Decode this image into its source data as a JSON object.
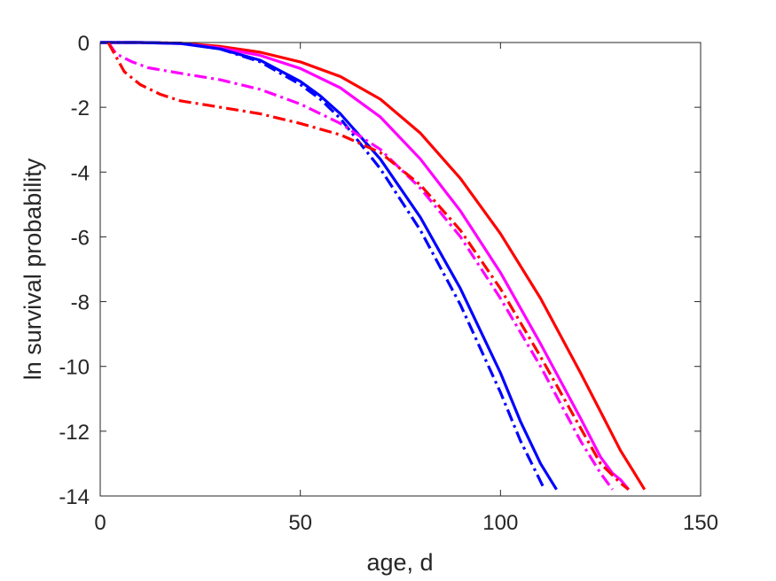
{
  "chart_data": {
    "type": "line",
    "title": "",
    "xlabel": "age, d",
    "ylabel": "ln survival probability",
    "xlim": [
      0,
      150
    ],
    "ylim": [
      -14,
      0
    ],
    "xticks": [
      0,
      50,
      100,
      150
    ],
    "yticks": [
      0,
      -2,
      -4,
      -6,
      -8,
      -10,
      -12,
      -14
    ],
    "grid": false,
    "legend": "none",
    "series": [
      {
        "color": "#ff0000",
        "style": "solid",
        "x": [
          0,
          10,
          20,
          30,
          40,
          50,
          60,
          70,
          80,
          90,
          100,
          110,
          120,
          125,
          130,
          133,
          136
        ],
        "y": [
          0,
          0,
          -0.02,
          -0.12,
          -0.3,
          -0.6,
          -1.05,
          -1.75,
          -2.8,
          -4.2,
          -5.9,
          -7.9,
          -10.2,
          -11.4,
          -12.6,
          -13.2,
          -13.8
        ]
      },
      {
        "color": "#ff00ff",
        "style": "solid",
        "x": [
          0,
          10,
          20,
          30,
          40,
          50,
          60,
          70,
          80,
          90,
          100,
          110,
          120,
          125,
          128,
          130,
          132
        ],
        "y": [
          0,
          0,
          -0.03,
          -0.17,
          -0.4,
          -0.8,
          -1.4,
          -2.3,
          -3.6,
          -5.2,
          -7.1,
          -9.3,
          -11.6,
          -12.8,
          -13.3,
          -13.5,
          -13.8
        ]
      },
      {
        "color": "#0000ff",
        "style": "solid",
        "x": [
          0,
          10,
          20,
          30,
          40,
          50,
          55,
          60,
          70,
          80,
          90,
          100,
          105,
          110,
          112,
          114
        ],
        "y": [
          0,
          0,
          -0.03,
          -0.2,
          -0.55,
          -1.2,
          -1.65,
          -2.2,
          -3.6,
          -5.4,
          -7.6,
          -10.2,
          -11.7,
          -13.0,
          -13.4,
          -13.8
        ]
      },
      {
        "color": "#0000ff",
        "style": "dashdot",
        "x": [
          0,
          10,
          20,
          30,
          40,
          50,
          55,
          60,
          70,
          80,
          90,
          100,
          105,
          109,
          111
        ],
        "y": [
          0,
          0,
          -0.02,
          -0.2,
          -0.6,
          -1.3,
          -1.75,
          -2.35,
          -3.9,
          -5.8,
          -8.1,
          -10.8,
          -12.3,
          -13.3,
          -13.8
        ]
      },
      {
        "color": "#ff00ff",
        "style": "dashdot",
        "x": [
          2,
          4,
          8,
          12,
          20,
          30,
          40,
          50,
          60,
          70,
          80,
          90,
          100,
          110,
          120,
          125,
          128
        ],
        "y": [
          0,
          -0.35,
          -0.6,
          -0.78,
          -0.95,
          -1.15,
          -1.45,
          -1.9,
          -2.5,
          -3.3,
          -4.5,
          -6.0,
          -7.9,
          -10.0,
          -12.3,
          -13.3,
          -13.8
        ]
      },
      {
        "color": "#ff0000",
        "style": "dashdot",
        "x": [
          2,
          4,
          6,
          10,
          15,
          20,
          30,
          40,
          50,
          60,
          70,
          80,
          90,
          100,
          110,
          120,
          125,
          130,
          132
        ],
        "y": [
          0,
          -0.45,
          -0.9,
          -1.3,
          -1.6,
          -1.8,
          -2.0,
          -2.2,
          -2.5,
          -2.85,
          -3.4,
          -4.4,
          -5.8,
          -7.6,
          -9.7,
          -11.9,
          -13.0,
          -13.6,
          -13.8
        ]
      }
    ]
  }
}
